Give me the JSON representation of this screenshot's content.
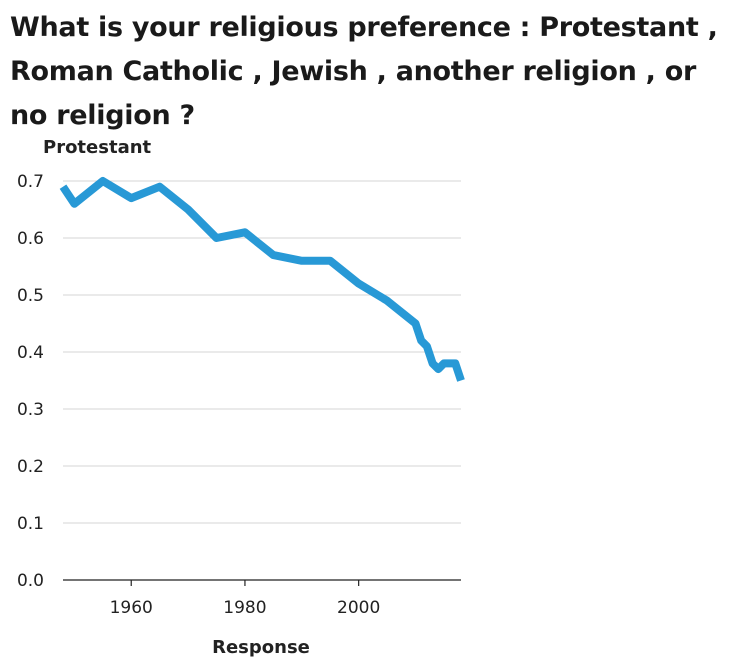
{
  "chart_data": {
    "type": "line",
    "title": "What is your religious preference : Protestant , Roman Catholic , Jewish , another religion , or no religion ?",
    "xlabel": "Response",
    "ylabel": "Protestant",
    "xlim": [
      1948,
      2018
    ],
    "ylim": [
      0,
      0.7
    ],
    "x_ticks": [
      1960,
      1980,
      2000
    ],
    "y_ticks": [
      0.0,
      0.1,
      0.2,
      0.3,
      0.4,
      0.5,
      0.6,
      0.7
    ],
    "grid": true,
    "legend": "none",
    "series": [
      {
        "color": "#2899d6",
        "x": [
          1948,
          1950,
          1955,
          1960,
          1965,
          1970,
          1975,
          1980,
          1985,
          1990,
          1995,
          2000,
          2005,
          2010,
          2011,
          2012,
          2013,
          2014,
          2015,
          2016,
          2017,
          2018
        ],
        "y": [
          0.69,
          0.66,
          0.7,
          0.67,
          0.69,
          0.65,
          0.6,
          0.61,
          0.57,
          0.56,
          0.56,
          0.52,
          0.49,
          0.45,
          0.42,
          0.41,
          0.38,
          0.37,
          0.38,
          0.38,
          0.38,
          0.35
        ]
      }
    ]
  }
}
